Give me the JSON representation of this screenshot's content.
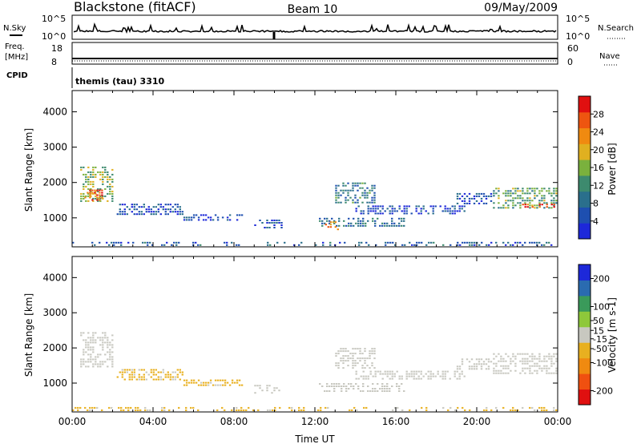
{
  "header": {
    "station": "Blackstone (fitACF)",
    "beam": "Beam 10",
    "date": "09/May/2009"
  },
  "panels": {
    "nsky": {
      "label": "N.Sky",
      "tick_top": "10^5",
      "tick_bottom": "10^0"
    },
    "nsearch": {
      "label": "N.Search",
      "tick_top": "10^5",
      "tick_bottom": "10^0"
    },
    "freq": {
      "label_line1": "Freq.",
      "label_line2": "[MHz]",
      "tick_top": "18",
      "tick_bottom": "8"
    },
    "nave": {
      "label": "Nave",
      "tick_top": "60",
      "tick_bottom": "0"
    },
    "cpid": {
      "label": "CPID",
      "value": "themis (tau) 3310"
    }
  },
  "colors": {
    "power_scale": [
      "#1d28d9",
      "#1e4fb0",
      "#2a6f8c",
      "#3d8a6e",
      "#7ab13d",
      "#e0b020",
      "#f08a10",
      "#ee5510",
      "#e01010"
    ],
    "velocity_scale": [
      "#e01010",
      "#f05010",
      "#f08a10",
      "#e8b020",
      "#c8c8c0",
      "#8ec83a",
      "#3a9a5a",
      "#2a6bb0",
      "#1d28d9"
    ],
    "background_scatter_gray": "#c8c8c0"
  },
  "chart_data": [
    {
      "type": "heatmap",
      "title": "Power",
      "xlabel": "",
      "ylabel": "Slant Range [km]",
      "x_ticks": [
        "00:00",
        "04:00",
        "08:00",
        "12:00",
        "16:00",
        "20:00",
        "00:00"
      ],
      "x_range_hours": [
        0,
        24
      ],
      "y_ticks": [
        1000,
        2000,
        3000,
        4000
      ],
      "ylim": [
        180,
        4600
      ],
      "colorbar": {
        "label": "Power [dB]",
        "ticks": [
          "4",
          "8",
          "12",
          "16",
          "20",
          "24",
          "28"
        ],
        "tick_values": [
          4,
          8,
          12,
          16,
          20,
          24,
          28
        ],
        "range": [
          0,
          32
        ]
      },
      "echo_regions": [
        {
          "t": [
            0.4,
            2.1
          ],
          "r": [
            1450,
            2450
          ],
          "value": 16
        },
        {
          "t": [
            0.6,
            1.6
          ],
          "r": [
            1450,
            1800
          ],
          "value": 27
        },
        {
          "t": [
            2.2,
            5.5
          ],
          "r": [
            1050,
            1400
          ],
          "value": 5
        },
        {
          "t": [
            5.5,
            8.5
          ],
          "r": [
            900,
            1100
          ],
          "value": 5
        },
        {
          "t": [
            9.0,
            10.4
          ],
          "r": [
            700,
            950
          ],
          "value": 5
        },
        {
          "t": [
            12.2,
            16.5
          ],
          "r": [
            700,
            1000
          ],
          "value": 9
        },
        {
          "t": [
            12.5,
            13.2
          ],
          "r": [
            650,
            900
          ],
          "value": 22
        },
        {
          "t": [
            13.0,
            15.0
          ],
          "r": [
            1400,
            2000
          ],
          "value": 10
        },
        {
          "t": [
            14.0,
            19.5
          ],
          "r": [
            1050,
            1350
          ],
          "value": 5
        },
        {
          "t": [
            19.0,
            20.8
          ],
          "r": [
            1350,
            1700
          ],
          "value": 5
        },
        {
          "t": [
            20.8,
            24.0
          ],
          "r": [
            1250,
            1850
          ],
          "value": 14
        },
        {
          "t": [
            22.0,
            24.0
          ],
          "r": [
            1250,
            1400
          ],
          "value": 27
        },
        {
          "t": [
            0.0,
            24.0
          ],
          "r": [
            200,
            320
          ],
          "value": 6
        }
      ]
    },
    {
      "type": "heatmap",
      "title": "Velocity",
      "xlabel": "Time UT",
      "ylabel": "Slant Range [km]",
      "x_ticks": [
        "00:00",
        "04:00",
        "08:00",
        "12:00",
        "16:00",
        "20:00",
        "00:00"
      ],
      "x_range_hours": [
        0,
        24
      ],
      "y_ticks": [
        1000,
        2000,
        3000,
        4000
      ],
      "ylim": [
        180,
        4600
      ],
      "colorbar": {
        "label": "Velocity [m s-1]",
        "ticks": [
          "-200",
          "-100",
          "-50",
          "-15",
          "15",
          "50",
          "100",
          "200"
        ],
        "tick_values": [
          -200,
          -100,
          -50,
          -15,
          15,
          50,
          100,
          200
        ],
        "range": [
          -250,
          250
        ]
      },
      "echo_regions": [
        {
          "t": [
            0.4,
            2.1
          ],
          "r": [
            1450,
            2450
          ],
          "value": 0
        },
        {
          "t": [
            2.2,
            5.5
          ],
          "r": [
            1050,
            1400
          ],
          "value": -40
        },
        {
          "t": [
            5.5,
            8.5
          ],
          "r": [
            900,
            1100
          ],
          "value": -40
        },
        {
          "t": [
            9.0,
            10.4
          ],
          "r": [
            700,
            950
          ],
          "value": 0
        },
        {
          "t": [
            12.2,
            16.5
          ],
          "r": [
            700,
            1000
          ],
          "value": 0
        },
        {
          "t": [
            13.0,
            15.0
          ],
          "r": [
            1400,
            2000
          ],
          "value": 0
        },
        {
          "t": [
            14.0,
            19.5
          ],
          "r": [
            1050,
            1350
          ],
          "value": 0
        },
        {
          "t": [
            19.0,
            20.8
          ],
          "r": [
            1350,
            1700
          ],
          "value": 0
        },
        {
          "t": [
            20.8,
            24.0
          ],
          "r": [
            1250,
            1850
          ],
          "value": 0
        },
        {
          "t": [
            0.0,
            24.0
          ],
          "r": [
            200,
            320
          ],
          "value": -40
        }
      ]
    }
  ]
}
